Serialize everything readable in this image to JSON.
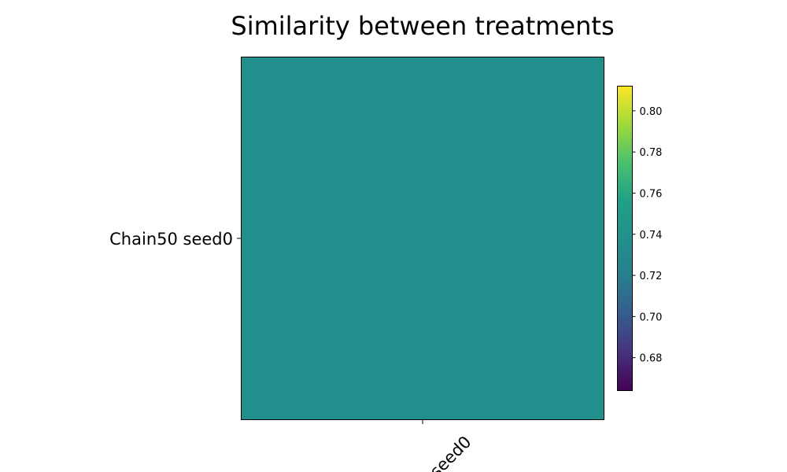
{
  "chart_data": {
    "type": "heatmap",
    "title": "Similarity between treatments",
    "row_labels": [
      "Chain50 seed0"
    ],
    "col_labels": [
      "seed0"
    ],
    "values": [
      [
        0.7381
      ]
    ],
    "colorbar": {
      "colormap": "viridis",
      "range": [
        0.664,
        0.812
      ],
      "ticks": [
        0.68,
        0.7,
        0.72,
        0.74,
        0.76,
        0.78,
        0.8
      ],
      "tick_labels": [
        "0.68",
        "0.70",
        "0.72",
        "0.74",
        "0.76",
        "0.78",
        "0.80"
      ]
    },
    "cell_color": "#21908d",
    "grid": false
  }
}
